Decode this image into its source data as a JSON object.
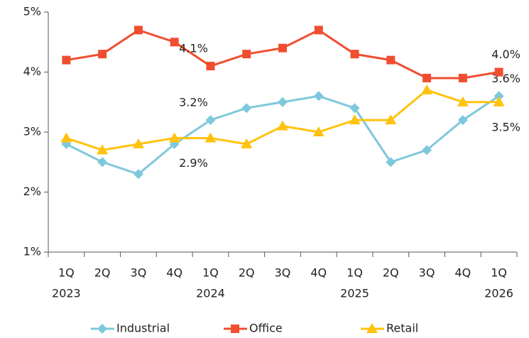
{
  "chart_data": {
    "type": "line",
    "categories": [
      "1Q",
      "2Q",
      "3Q",
      "4Q",
      "1Q",
      "2Q",
      "3Q",
      "4Q",
      "1Q",
      "2Q",
      "3Q",
      "4Q",
      "1Q"
    ],
    "category_groups": [
      "2023",
      null,
      null,
      null,
      "2024",
      null,
      null,
      null,
      "2025",
      null,
      null,
      null,
      "2026"
    ],
    "ylim": [
      1,
      5
    ],
    "yticks": [
      {
        "value": 1,
        "label": "1%"
      },
      {
        "value": 2,
        "label": "2%"
      },
      {
        "value": 3,
        "label": "3%"
      },
      {
        "value": 4,
        "label": "4%"
      },
      {
        "value": 5,
        "label": "5%"
      }
    ],
    "grid": false,
    "legend": "bottom",
    "series": [
      {
        "name": "Industrial",
        "color": "#7ec8dc",
        "marker": "diamond",
        "values": [
          2.8,
          2.5,
          2.3,
          2.8,
          3.2,
          3.4,
          3.5,
          3.6,
          3.4,
          2.5,
          2.7,
          3.2,
          3.6
        ],
        "value_labels": [
          null,
          null,
          null,
          null,
          "3.2%",
          null,
          null,
          null,
          null,
          null,
          null,
          null,
          "3.6%"
        ]
      },
      {
        "name": "Office",
        "color": "#f04e30",
        "marker": "square",
        "values": [
          4.2,
          4.3,
          4.7,
          4.5,
          4.1,
          4.3,
          4.4,
          4.7,
          4.3,
          4.2,
          3.9,
          3.9,
          4.0
        ],
        "value_labels": [
          null,
          null,
          null,
          null,
          "4.1%",
          null,
          null,
          null,
          null,
          null,
          null,
          null,
          "4.0%"
        ]
      },
      {
        "name": "Retail",
        "color": "#ffc20e",
        "marker": "triangle",
        "values": [
          2.9,
          2.7,
          2.8,
          2.9,
          2.9,
          2.8,
          3.1,
          3.0,
          3.2,
          3.2,
          3.7,
          3.5,
          3.5
        ],
        "value_labels": [
          null,
          null,
          null,
          null,
          "2.9%",
          null,
          null,
          null,
          null,
          null,
          null,
          null,
          "3.5%"
        ]
      }
    ]
  }
}
